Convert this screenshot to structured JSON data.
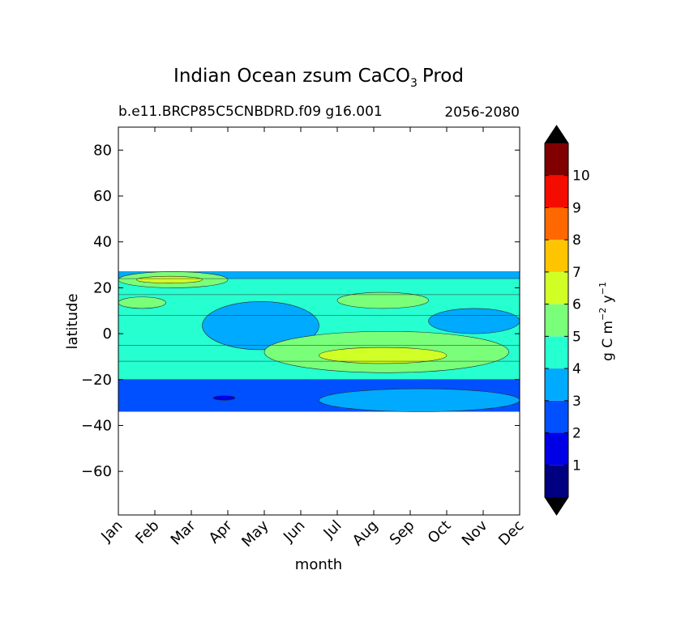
{
  "chart_data": {
    "type": "heatmap",
    "title": "Indian Ocean zsum CaCO",
    "title_subscript": "3",
    "title_suffix": "Prod",
    "subtitle_left": "b.e11.BRCP85C5CNBDRD.f09 g16.001",
    "subtitle_right": "2056-2080",
    "xlabel": "month",
    "ylabel": "latitude",
    "x_ticks": [
      "Jan",
      "Feb",
      "Mar",
      "Apr",
      "May",
      "Jun",
      "Jul",
      "Aug",
      "Sep",
      "Oct",
      "Nov",
      "Dec"
    ],
    "xlim": [
      0,
      11
    ],
    "y_ticks": [
      80,
      60,
      40,
      20,
      0,
      -20,
      -40,
      -60
    ],
    "y_tick_labels": [
      "80",
      "60",
      "40",
      "20",
      "0",
      "−20",
      "−40",
      "−60"
    ],
    "ylim": [
      -79,
      90
    ],
    "data_lat_range": [
      -34,
      27
    ],
    "colorbar": {
      "label_main": "g C m",
      "label_exp1": "−2",
      "label_mid": " y",
      "label_exp2": "−1",
      "levels": [
        0,
        1,
        2,
        3,
        4,
        5,
        6,
        7,
        8,
        9,
        10,
        11
      ],
      "tick_labels": [
        "1",
        "2",
        "3",
        "4",
        "5",
        "6",
        "7",
        "8",
        "9",
        "10"
      ],
      "colors": [
        "#000080",
        "#0000e6",
        "#0050ff",
        "#00aaff",
        "#26ffd0",
        "#7aff7a",
        "#d0ff26",
        "#ffc400",
        "#ff6800",
        "#f50c00",
        "#800000"
      ],
      "extend_color": "#000000"
    },
    "bands": [
      {
        "lat": [
          -34,
          -20
        ],
        "value": 2,
        "label": "2-3"
      },
      {
        "lat": [
          -20,
          -12
        ],
        "value": 4,
        "label": "4-5"
      },
      {
        "lat": [
          -12,
          -5
        ],
        "value": 4,
        "label": "4-5"
      },
      {
        "lat": [
          -5,
          8
        ],
        "value": 4,
        "label": "4-5"
      },
      {
        "lat": [
          8,
          17
        ],
        "value": 4,
        "label": "4-5"
      },
      {
        "lat": [
          17,
          24
        ],
        "value": 4,
        "label": "4-5"
      },
      {
        "lat": [
          24,
          27
        ],
        "value": 3,
        "label": "3-4"
      }
    ],
    "features": [
      {
        "region": "NH coastal high",
        "month_range": [
          0,
          3
        ],
        "lat_range": [
          20,
          27
        ],
        "value": 5
      },
      {
        "region": "NH coastal peak",
        "month_range": [
          0.5,
          2.3
        ],
        "lat_range": [
          22,
          25
        ],
        "value": 6
      },
      {
        "region": "NH mid high",
        "month_range": [
          0,
          1.3
        ],
        "lat_range": [
          11,
          16
        ],
        "value": 5
      },
      {
        "region": "Jul-Sep 15N high",
        "month_range": [
          6,
          8.5
        ],
        "lat_range": [
          11,
          18
        ],
        "value": 5
      },
      {
        "region": "Apr-May equatorial low",
        "month_range": [
          2.3,
          5.5
        ],
        "lat_range": [
          -7,
          14
        ],
        "value": 3
      },
      {
        "region": "Oct-Dec equatorial low",
        "month_range": [
          8.5,
          11
        ],
        "lat_range": [
          0,
          11
        ],
        "value": 3
      },
      {
        "region": "Jul-Oct southern high",
        "month_range": [
          4,
          10.7
        ],
        "lat_range": [
          -17,
          1
        ],
        "value": 5
      },
      {
        "region": "Aug peak",
        "month_range": [
          5.5,
          9
        ],
        "lat_range": [
          -13,
          -6
        ],
        "value": 6
      },
      {
        "region": "Aug-Dec southern medium",
        "month_range": [
          5.5,
          11
        ],
        "lat_range": [
          -34,
          -24
        ],
        "value": 3
      },
      {
        "region": "Apr minimum",
        "month_range": [
          2.6,
          3.2
        ],
        "lat_range": [
          -29,
          -27
        ],
        "value": 1
      }
    ]
  }
}
